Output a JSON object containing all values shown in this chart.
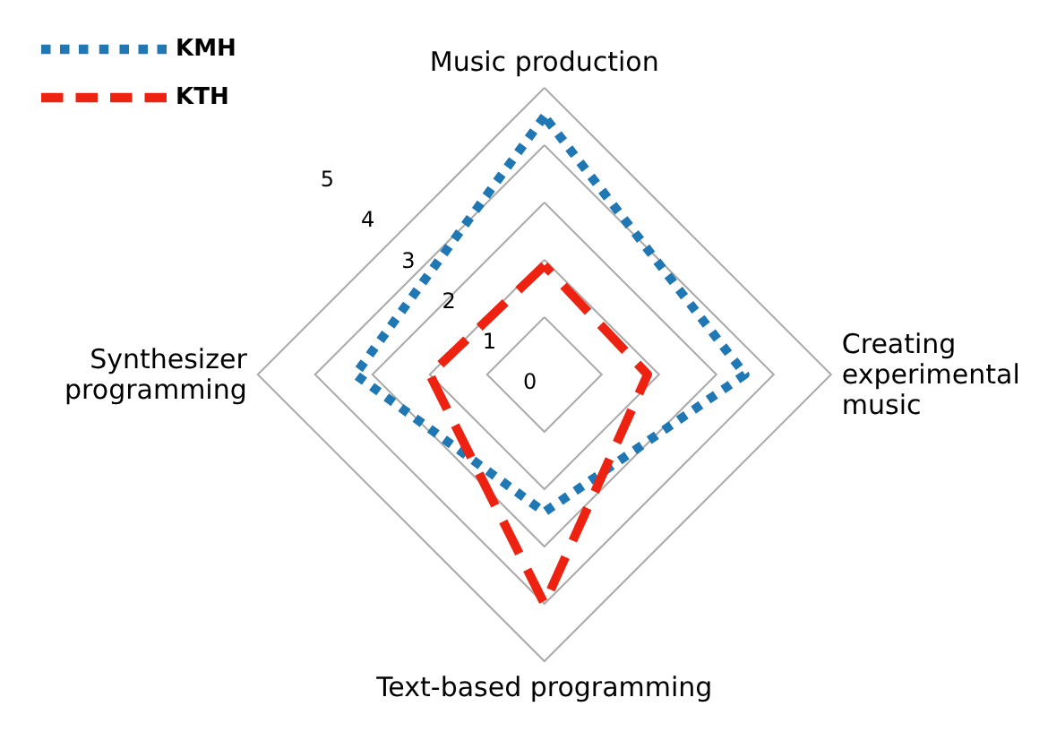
{
  "chart_data": {
    "type": "radar",
    "categories": [
      "Music production",
      "Creating\nexperimental\nmusic",
      "Text-based programming",
      "Synthesizer\nprogramming"
    ],
    "series": [
      {
        "name": "KMH",
        "color": "#1f77b4",
        "values": [
          4.5,
          3.5,
          2.4,
          3.3
        ],
        "line_style": "dotted"
      },
      {
        "name": "KTH",
        "color": "#ee2211",
        "values": [
          1.9,
          1.8,
          4.0,
          2.0
        ],
        "line_style": "dashed"
      }
    ],
    "ylim": [
      0,
      5
    ],
    "yticks": [
      0,
      1,
      2,
      3,
      4,
      5
    ],
    "grid": true,
    "legend": "top left"
  }
}
